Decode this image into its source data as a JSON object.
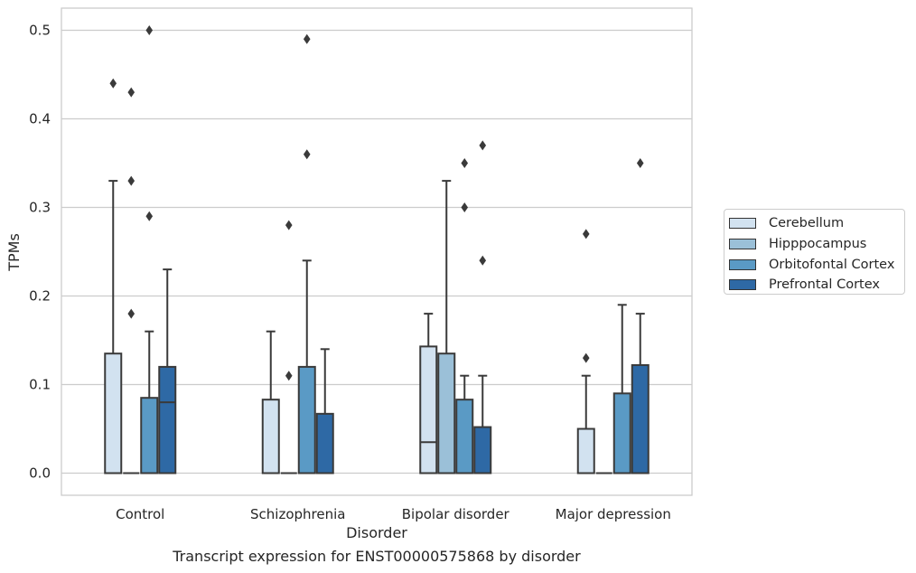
{
  "chart_data": {
    "type": "box",
    "title": "",
    "xlabel": "Disorder",
    "ylabel": "TPMs",
    "caption": "Transcript expression for ENST00000575868 by disorder",
    "categories": [
      "Control",
      "Schizophrenia",
      "Bipolar disorder",
      "Major depression"
    ],
    "ylim": [
      -0.025,
      0.525
    ],
    "yticks": [
      "0.0",
      "0.1",
      "0.2",
      "0.3",
      "0.4",
      "0.5"
    ],
    "grid": true,
    "legend_position": "right",
    "series": [
      {
        "name": "Cerebellum",
        "color": "#d2e2f0",
        "boxes": [
          {
            "q1": 0.0,
            "median": 0.0,
            "q3": 0.135,
            "whisker_low": 0.0,
            "whisker_high": 0.33,
            "outliers": [
              0.44
            ]
          },
          {
            "q1": 0.0,
            "median": 0.0,
            "q3": 0.083,
            "whisker_low": 0.0,
            "whisker_high": 0.16,
            "outliers": []
          },
          {
            "q1": 0.0,
            "median": 0.035,
            "q3": 0.143,
            "whisker_low": 0.0,
            "whisker_high": 0.18,
            "outliers": []
          },
          {
            "q1": 0.0,
            "median": 0.0,
            "q3": 0.05,
            "whisker_low": 0.0,
            "whisker_high": 0.11,
            "outliers": [
              0.13,
              0.27
            ]
          }
        ]
      },
      {
        "name": "Hipppocampus",
        "color": "#9bc0d8",
        "boxes": [
          {
            "q1": 0.0,
            "median": 0.0,
            "q3": 0.0,
            "whisker_low": 0.0,
            "whisker_high": 0.0,
            "outliers": [
              0.18,
              0.33,
              0.43
            ]
          },
          {
            "q1": 0.0,
            "median": 0.0,
            "q3": 0.0,
            "whisker_low": 0.0,
            "whisker_high": 0.0,
            "outliers": [
              0.11,
              0.28
            ]
          },
          {
            "q1": 0.0,
            "median": 0.0,
            "q3": 0.135,
            "whisker_low": 0.0,
            "whisker_high": 0.33,
            "outliers": []
          },
          {
            "q1": 0.0,
            "median": 0.0,
            "q3": 0.0,
            "whisker_low": 0.0,
            "whisker_high": 0.0,
            "outliers": []
          }
        ]
      },
      {
        "name": "Orbitofontal Cortex",
        "color": "#5a9ac5",
        "boxes": [
          {
            "q1": 0.0,
            "median": 0.0,
            "q3": 0.085,
            "whisker_low": 0.0,
            "whisker_high": 0.16,
            "outliers": [
              0.29,
              0.5
            ]
          },
          {
            "q1": 0.0,
            "median": 0.0,
            "q3": 0.12,
            "whisker_low": 0.0,
            "whisker_high": 0.24,
            "outliers": [
              0.36,
              0.49
            ]
          },
          {
            "q1": 0.0,
            "median": 0.0,
            "q3": 0.083,
            "whisker_low": 0.0,
            "whisker_high": 0.11,
            "outliers": [
              0.3,
              0.35
            ]
          },
          {
            "q1": 0.0,
            "median": 0.0,
            "q3": 0.09,
            "whisker_low": 0.0,
            "whisker_high": 0.19,
            "outliers": []
          }
        ]
      },
      {
        "name": "Prefrontal Cortex",
        "color": "#2e69a5",
        "boxes": [
          {
            "q1": 0.0,
            "median": 0.08,
            "q3": 0.12,
            "whisker_low": 0.0,
            "whisker_high": 0.23,
            "outliers": []
          },
          {
            "q1": 0.0,
            "median": 0.0,
            "q3": 0.067,
            "whisker_low": 0.0,
            "whisker_high": 0.14,
            "outliers": []
          },
          {
            "q1": 0.0,
            "median": 0.0,
            "q3": 0.052,
            "whisker_low": 0.0,
            "whisker_high": 0.11,
            "outliers": [
              0.24,
              0.37
            ]
          },
          {
            "q1": 0.0,
            "median": 0.0,
            "q3": 0.122,
            "whisker_low": 0.0,
            "whisker_high": 0.18,
            "outliers": [
              0.35
            ]
          }
        ]
      }
    ]
  }
}
